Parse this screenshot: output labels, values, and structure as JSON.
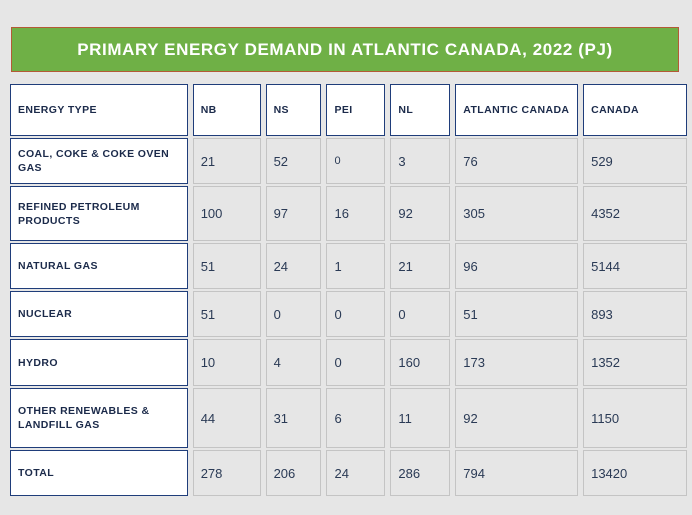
{
  "title": "PRIMARY ENERGY DEMAND IN ATLANTIC CANADA, 2022 (PJ)",
  "columns": [
    "ENERGY TYPE",
    "NB",
    "NS",
    "PEI",
    "NL",
    "ATLANTIC CANADA",
    "CANADA"
  ],
  "rows": [
    {
      "label": "COAL, COKE & COKE OVEN GAS",
      "values": [
        "21",
        "52",
        "0",
        "3",
        "76",
        "529"
      ]
    },
    {
      "label": "REFINED PETROLEUM PRODUCTS",
      "values": [
        "100",
        "97",
        "16",
        "92",
        "305",
        "4352"
      ]
    },
    {
      "label": "NATURAL GAS",
      "values": [
        "51",
        "24",
        "1",
        "21",
        "96",
        "5144"
      ]
    },
    {
      "label": "NUCLEAR",
      "values": [
        "51",
        "0",
        "0",
        "0",
        "51",
        "893"
      ]
    },
    {
      "label": "HYDRO",
      "values": [
        "10",
        "4",
        "0",
        "160",
        "173",
        "1352"
      ]
    },
    {
      "label": "OTHER RENEWABLES & LANDFILL GAS",
      "values": [
        "44",
        "31",
        "6",
        "11",
        "92",
        "1150"
      ]
    },
    {
      "label": "TOTAL",
      "values": [
        "278",
        "206",
        "24",
        "286",
        "794",
        "13420"
      ]
    }
  ]
}
